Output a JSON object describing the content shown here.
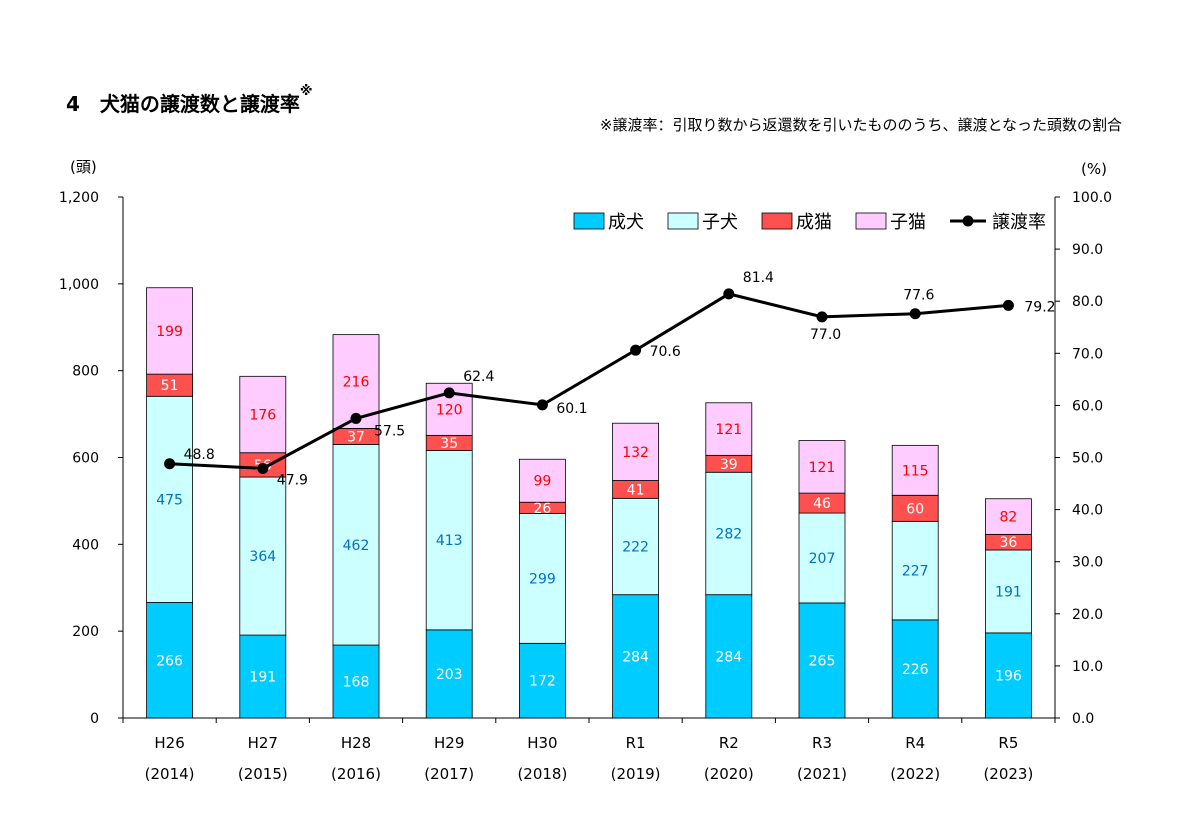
{
  "title": "4　犬猫の譲渡数と譲渡率",
  "title_mark": "※",
  "note": "※譲渡率：引取り数から返還数を引いたもののうち、譲渡となった頭数の割合",
  "chart_data": {
    "type": "bar",
    "stacked": true,
    "categories": [
      "H26",
      "H27",
      "H28",
      "H29",
      "H30",
      "R1",
      "R2",
      "R3",
      "R4",
      "R5"
    ],
    "category_years": [
      "(2014)",
      "(2015)",
      "(2016)",
      "(2017)",
      "(2018)",
      "(2019)",
      "(2020)",
      "(2021)",
      "(2022)",
      "(2023)"
    ],
    "series": [
      {
        "name": "成犬",
        "color": "#00CCFF",
        "label_color": "#ffffff",
        "values": [
          266,
          191,
          168,
          203,
          172,
          284,
          284,
          265,
          226,
          196
        ]
      },
      {
        "name": "子犬",
        "color": "#CCFFFF",
        "label_color": "#0070C0",
        "values": [
          475,
          364,
          462,
          413,
          299,
          222,
          282,
          207,
          227,
          191
        ]
      },
      {
        "name": "成猫",
        "color": "#FF5050",
        "label_color": "#ffffff",
        "values": [
          51,
          56,
          37,
          35,
          26,
          41,
          39,
          46,
          60,
          36
        ]
      },
      {
        "name": "子猫",
        "color": "#FFCCFF",
        "label_color": "#FF0000",
        "values": [
          199,
          176,
          216,
          120,
          99,
          132,
          121,
          121,
          115,
          82
        ]
      }
    ],
    "line": {
      "name": "譲渡率",
      "color": "#000000",
      "values": [
        48.8,
        47.9,
        57.5,
        62.4,
        60.1,
        70.6,
        81.4,
        77.0,
        77.6,
        79.2
      ],
      "labels": [
        "48.8",
        "47.9",
        "57.5",
        "62.4",
        "60.1",
        "70.6",
        "81.4",
        "77.0",
        "77.6",
        "79.2"
      ]
    },
    "y_left": {
      "unit": "(頭)",
      "ylim": [
        0,
        1200
      ],
      "ticks": [
        0,
        200,
        400,
        600,
        800,
        1000,
        1200
      ],
      "tick_labels": [
        "0",
        "200",
        "400",
        "600",
        "800",
        "1,000",
        "1,200"
      ]
    },
    "y_right": {
      "unit": "(%)",
      "ylim": [
        0,
        100
      ],
      "ticks": [
        0,
        10,
        20,
        30,
        40,
        50,
        60,
        70,
        80,
        90,
        100
      ],
      "tick_labels": [
        "0.0",
        "10.0",
        "20.0",
        "30.0",
        "40.0",
        "50.0",
        "60.0",
        "70.0",
        "80.0",
        "90.0",
        "100.0"
      ]
    },
    "legend_position": "top-right",
    "grid": false
  }
}
